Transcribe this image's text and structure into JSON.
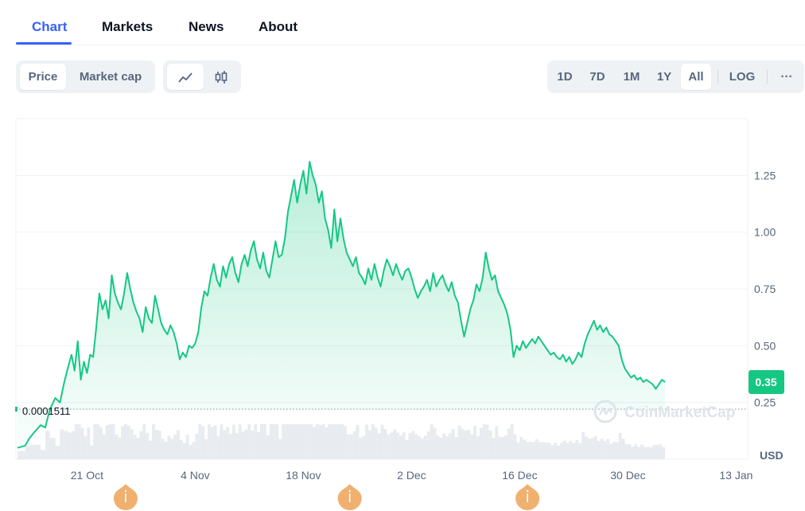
{
  "tabs": [
    {
      "label": "Chart",
      "active": true
    },
    {
      "label": "Markets",
      "active": false
    },
    {
      "label": "News",
      "active": false
    },
    {
      "label": "About",
      "active": false
    }
  ],
  "toolbar": {
    "metric": [
      {
        "label": "Price",
        "active": true
      },
      {
        "label": "Market cap",
        "active": false
      }
    ],
    "chart_style": [
      {
        "icon": "line-chart-icon",
        "active": true
      },
      {
        "icon": "candlestick-icon",
        "active": false
      }
    ],
    "ranges": [
      {
        "label": "1D",
        "active": false
      },
      {
        "label": "7D",
        "active": false
      },
      {
        "label": "1M",
        "active": false
      },
      {
        "label": "1Y",
        "active": false
      },
      {
        "label": "All",
        "active": true
      }
    ],
    "log_label": "LOG",
    "more_label": "···"
  },
  "chart_data": {
    "type": "area",
    "currency_label": "USD",
    "watermark": "CoinMarketCap",
    "current_price_label": "0.35",
    "baseline_label": "0.0001511",
    "y_ticks": [
      {
        "value": 0.25,
        "label": "0.25"
      },
      {
        "value": 0.5,
        "label": "0.50"
      },
      {
        "value": 0.75,
        "label": "0.75"
      },
      {
        "value": 1.0,
        "label": "1.00"
      },
      {
        "value": 1.25,
        "label": "1.25"
      }
    ],
    "x_ticks": [
      {
        "day": 6,
        "label": "21 Oct"
      },
      {
        "day": 20,
        "label": "4 Nov"
      },
      {
        "day": 34,
        "label": "18 Nov"
      },
      {
        "day": 48,
        "label": "2 Dec"
      },
      {
        "day": 62,
        "label": "16 Dec"
      },
      {
        "day": 76,
        "label": "30 Dec"
      },
      {
        "day": 90,
        "label": "13 Jan"
      }
    ],
    "x_range": [
      -3.2,
      91.5
    ],
    "y_range": [
      0.0,
      1.5
    ],
    "events": [
      {
        "day": 11
      },
      {
        "day": 40
      },
      {
        "day": 63
      }
    ],
    "colors": {
      "line": "#16c784",
      "area_top": "#16c784",
      "event": "#f0b070",
      "grid": "#eff2f5",
      "volume": "#e8ebef",
      "badge": "#16c784"
    },
    "price_series": [
      [
        -3.0,
        0.05
      ],
      [
        -2.0,
        0.06
      ],
      [
        -1.5,
        0.09
      ],
      [
        -0.8,
        0.12
      ],
      [
        0.0,
        0.15
      ],
      [
        0.6,
        0.14
      ],
      [
        1.2,
        0.22
      ],
      [
        1.9,
        0.27
      ],
      [
        2.5,
        0.25
      ],
      [
        3.0,
        0.33
      ],
      [
        3.5,
        0.4
      ],
      [
        4.0,
        0.46
      ],
      [
        4.4,
        0.39
      ],
      [
        4.8,
        0.52
      ],
      [
        5.2,
        0.35
      ],
      [
        5.6,
        0.43
      ],
      [
        6.0,
        0.38
      ],
      [
        6.4,
        0.46
      ],
      [
        6.8,
        0.45
      ],
      [
        7.2,
        0.58
      ],
      [
        7.6,
        0.73
      ],
      [
        8.0,
        0.66
      ],
      [
        8.4,
        0.7
      ],
      [
        8.8,
        0.62
      ],
      [
        9.2,
        0.81
      ],
      [
        9.6,
        0.73
      ],
      [
        10.0,
        0.69
      ],
      [
        10.4,
        0.66
      ],
      [
        10.8,
        0.73
      ],
      [
        11.2,
        0.82
      ],
      [
        11.6,
        0.75
      ],
      [
        12.0,
        0.69
      ],
      [
        12.4,
        0.65
      ],
      [
        12.8,
        0.62
      ],
      [
        13.2,
        0.56
      ],
      [
        13.6,
        0.67
      ],
      [
        14.0,
        0.62
      ],
      [
        14.4,
        0.6
      ],
      [
        14.8,
        0.72
      ],
      [
        15.2,
        0.66
      ],
      [
        15.6,
        0.6
      ],
      [
        16.0,
        0.57
      ],
      [
        16.4,
        0.55
      ],
      [
        16.8,
        0.59
      ],
      [
        17.2,
        0.56
      ],
      [
        17.6,
        0.51
      ],
      [
        18.0,
        0.44
      ],
      [
        18.4,
        0.47
      ],
      [
        18.8,
        0.45
      ],
      [
        19.2,
        0.5
      ],
      [
        19.6,
        0.49
      ],
      [
        20.0,
        0.51
      ],
      [
        20.4,
        0.56
      ],
      [
        20.8,
        0.67
      ],
      [
        21.2,
        0.74
      ],
      [
        21.6,
        0.72
      ],
      [
        22.0,
        0.8
      ],
      [
        22.4,
        0.86
      ],
      [
        22.8,
        0.79
      ],
      [
        23.2,
        0.76
      ],
      [
        23.6,
        0.85
      ],
      [
        24.0,
        0.8
      ],
      [
        24.4,
        0.86
      ],
      [
        24.8,
        0.89
      ],
      [
        25.2,
        0.82
      ],
      [
        25.6,
        0.78
      ],
      [
        26.0,
        0.86
      ],
      [
        26.4,
        0.9
      ],
      [
        26.8,
        0.85
      ],
      [
        27.2,
        0.92
      ],
      [
        27.6,
        0.96
      ],
      [
        28.0,
        0.88
      ],
      [
        28.4,
        0.84
      ],
      [
        28.8,
        0.91
      ],
      [
        29.2,
        0.83
      ],
      [
        29.6,
        0.8
      ],
      [
        30.0,
        0.88
      ],
      [
        30.4,
        0.96
      ],
      [
        30.8,
        0.89
      ],
      [
        31.2,
        0.9
      ],
      [
        31.6,
        0.97
      ],
      [
        32.0,
        1.09
      ],
      [
        32.4,
        1.16
      ],
      [
        32.8,
        1.23
      ],
      [
        33.2,
        1.13
      ],
      [
        33.6,
        1.21
      ],
      [
        34.0,
        1.27
      ],
      [
        34.4,
        1.17
      ],
      [
        34.8,
        1.31
      ],
      [
        35.2,
        1.25
      ],
      [
        35.6,
        1.21
      ],
      [
        36.0,
        1.13
      ],
      [
        36.4,
        1.18
      ],
      [
        36.8,
        1.06
      ],
      [
        37.2,
        1.01
      ],
      [
        37.6,
        0.93
      ],
      [
        38.0,
        1.1
      ],
      [
        38.4,
        0.96
      ],
      [
        38.8,
        1.06
      ],
      [
        39.2,
        0.97
      ],
      [
        39.6,
        0.91
      ],
      [
        40.0,
        0.88
      ],
      [
        40.4,
        0.85
      ],
      [
        40.8,
        0.89
      ],
      [
        41.2,
        0.82
      ],
      [
        41.6,
        0.8
      ],
      [
        42.0,
        0.77
      ],
      [
        42.4,
        0.84
      ],
      [
        42.8,
        0.79
      ],
      [
        43.2,
        0.86
      ],
      [
        43.6,
        0.8
      ],
      [
        44.0,
        0.76
      ],
      [
        44.4,
        0.83
      ],
      [
        44.8,
        0.88
      ],
      [
        45.2,
        0.85
      ],
      [
        45.6,
        0.81
      ],
      [
        46.0,
        0.86
      ],
      [
        46.4,
        0.82
      ],
      [
        46.8,
        0.79
      ],
      [
        47.2,
        0.83
      ],
      [
        47.6,
        0.84
      ],
      [
        48.0,
        0.8
      ],
      [
        48.4,
        0.75
      ],
      [
        48.8,
        0.71
      ],
      [
        49.2,
        0.74
      ],
      [
        49.6,
        0.76
      ],
      [
        50.0,
        0.79
      ],
      [
        50.4,
        0.74
      ],
      [
        50.8,
        0.82
      ],
      [
        51.2,
        0.76
      ],
      [
        51.6,
        0.79
      ],
      [
        52.0,
        0.81
      ],
      [
        52.4,
        0.77
      ],
      [
        52.8,
        0.74
      ],
      [
        53.2,
        0.78
      ],
      [
        53.6,
        0.72
      ],
      [
        54.0,
        0.69
      ],
      [
        54.4,
        0.61
      ],
      [
        54.8,
        0.54
      ],
      [
        55.2,
        0.6
      ],
      [
        55.6,
        0.66
      ],
      [
        56.0,
        0.7
      ],
      [
        56.4,
        0.77
      ],
      [
        56.8,
        0.74
      ],
      [
        57.2,
        0.8
      ],
      [
        57.6,
        0.91
      ],
      [
        58.0,
        0.84
      ],
      [
        58.4,
        0.79
      ],
      [
        58.8,
        0.81
      ],
      [
        59.2,
        0.74
      ],
      [
        59.6,
        0.71
      ],
      [
        60.0,
        0.68
      ],
      [
        60.4,
        0.64
      ],
      [
        60.8,
        0.57
      ],
      [
        61.2,
        0.45
      ],
      [
        61.6,
        0.5
      ],
      [
        62.0,
        0.48
      ],
      [
        62.4,
        0.52
      ],
      [
        62.8,
        0.49
      ],
      [
        63.2,
        0.51
      ],
      [
        63.6,
        0.53
      ],
      [
        64.0,
        0.51
      ],
      [
        64.4,
        0.54
      ],
      [
        64.8,
        0.52
      ],
      [
        65.2,
        0.5
      ],
      [
        65.6,
        0.48
      ],
      [
        66.0,
        0.46
      ],
      [
        66.4,
        0.47
      ],
      [
        66.8,
        0.45
      ],
      [
        67.2,
        0.44
      ],
      [
        67.6,
        0.46
      ],
      [
        68.0,
        0.43
      ],
      [
        68.4,
        0.45
      ],
      [
        68.8,
        0.42
      ],
      [
        69.2,
        0.44
      ],
      [
        69.6,
        0.47
      ],
      [
        70.0,
        0.45
      ],
      [
        70.4,
        0.51
      ],
      [
        70.8,
        0.55
      ],
      [
        71.2,
        0.58
      ],
      [
        71.6,
        0.61
      ],
      [
        72.0,
        0.57
      ],
      [
        72.4,
        0.59
      ],
      [
        72.8,
        0.56
      ],
      [
        73.2,
        0.58
      ],
      [
        73.6,
        0.55
      ],
      [
        74.0,
        0.54
      ],
      [
        74.4,
        0.52
      ],
      [
        74.8,
        0.5
      ],
      [
        75.2,
        0.44
      ],
      [
        75.6,
        0.4
      ],
      [
        76.0,
        0.38
      ],
      [
        76.4,
        0.36
      ],
      [
        76.8,
        0.37
      ],
      [
        77.2,
        0.35
      ],
      [
        77.6,
        0.36
      ],
      [
        78.0,
        0.34
      ],
      [
        78.4,
        0.35
      ],
      [
        78.8,
        0.34
      ],
      [
        79.2,
        0.33
      ],
      [
        79.6,
        0.31
      ],
      [
        80.0,
        0.33
      ],
      [
        80.4,
        0.35
      ],
      [
        80.8,
        0.34
      ]
    ]
  }
}
